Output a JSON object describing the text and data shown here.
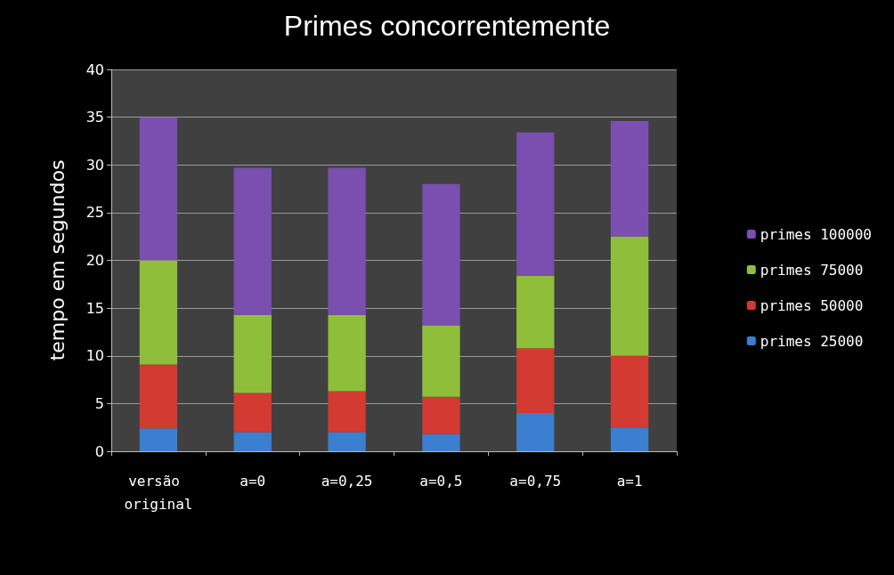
{
  "chart_data": {
    "type": "bar",
    "title": "Primes concorrentemente",
    "ylabel": "tempo em segundos",
    "categories": [
      "versão original",
      "a=0",
      "a=0,25",
      "a=0,5",
      "a=0,75",
      "a=1"
    ],
    "stacked": true,
    "ylim": [
      0,
      40
    ],
    "yticks": [
      0,
      5,
      10,
      15,
      20,
      25,
      30,
      35,
      40
    ],
    "grid": "y",
    "legend": "right",
    "series": [
      {
        "name": "primes 25000",
        "color": "#3a7fd0",
        "values": [
          2.4,
          2.0,
          2.0,
          1.8,
          4.0,
          2.5
        ]
      },
      {
        "name": "primes 50000",
        "color": "#d23a32",
        "values": [
          6.7,
          4.1,
          4.3,
          3.9,
          6.8,
          7.5
        ]
      },
      {
        "name": "primes 75000",
        "color": "#8fbf3a",
        "values": [
          10.9,
          8.2,
          8.0,
          7.5,
          7.6,
          12.5
        ]
      },
      {
        "name": "primes 100000",
        "color": "#7a4fb0",
        "values": [
          15.0,
          15.4,
          15.4,
          14.8,
          15.0,
          12.1
        ]
      }
    ]
  }
}
